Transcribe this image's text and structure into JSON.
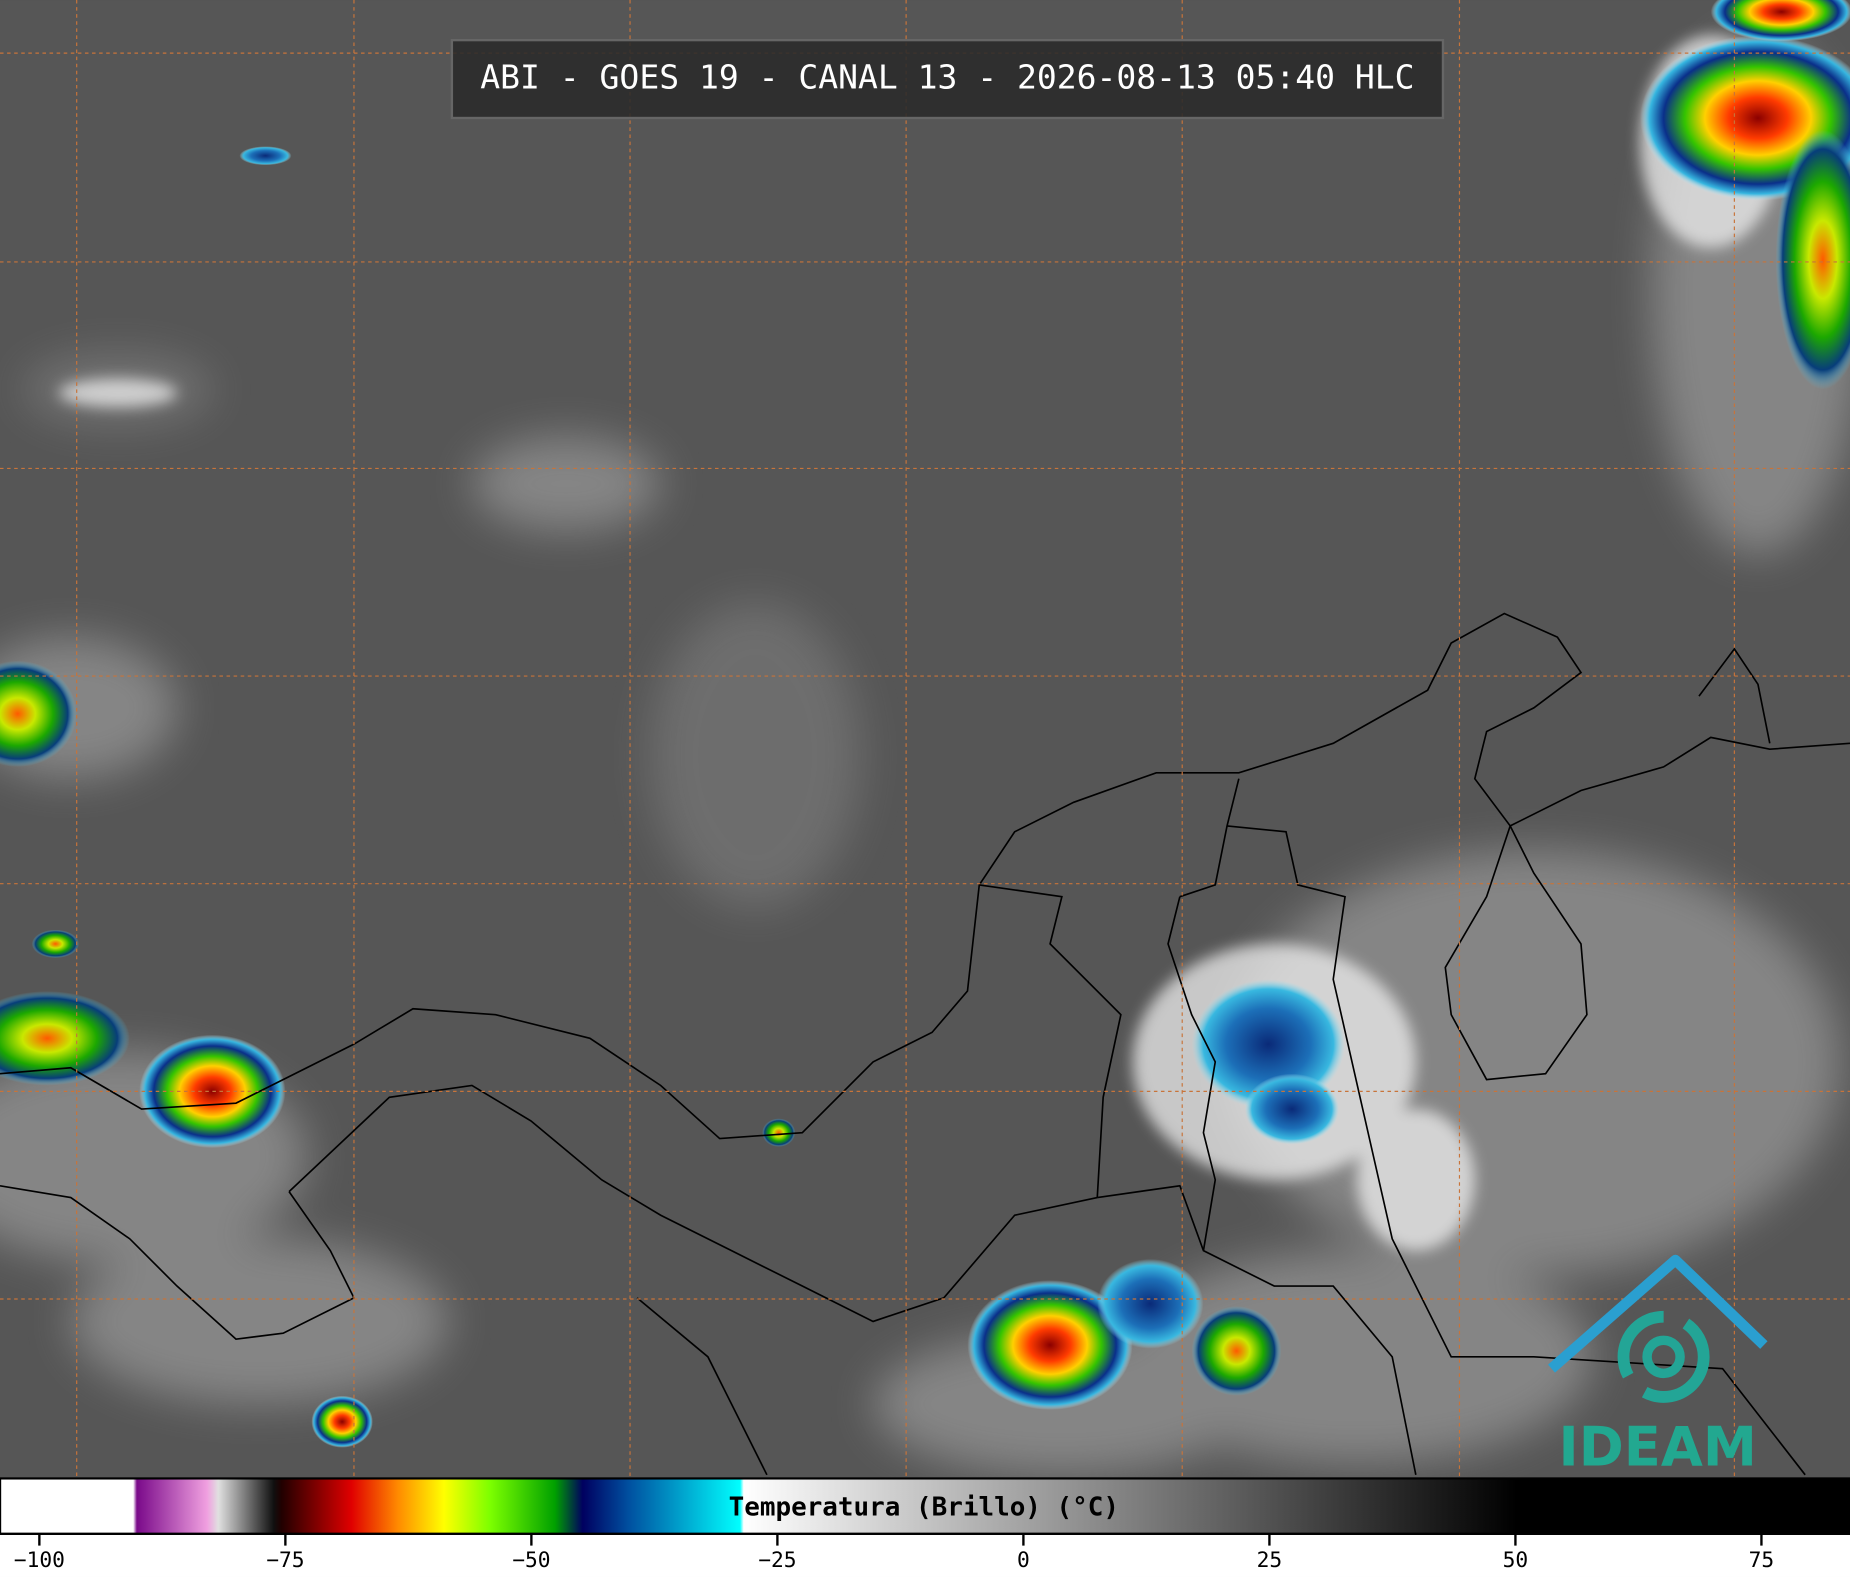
{
  "title": "ABI - GOES 19 - CANAL 13 - 2026-08-13 05:40 HLC",
  "colorbar": {
    "label": "Temperatura (Brillo) (°C)",
    "lim": [
      -104,
      84
    ],
    "ticks": [
      {
        "value": -100,
        "label": "−100"
      },
      {
        "value": -75,
        "label": "−75"
      },
      {
        "value": -50,
        "label": "−50"
      },
      {
        "value": -25,
        "label": "−25"
      },
      0,
      25,
      50,
      75
    ]
  },
  "logo": {
    "text": "IDEAM"
  }
}
